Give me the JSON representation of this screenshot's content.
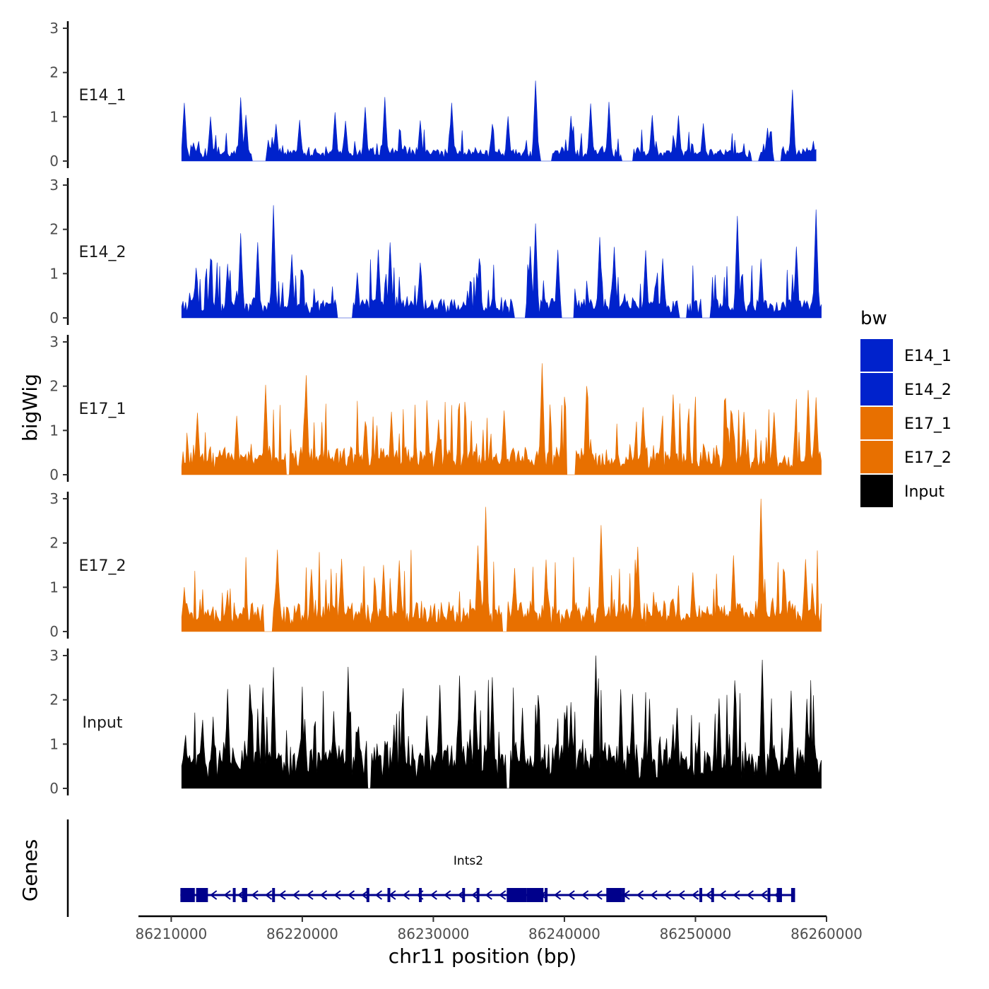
{
  "chart_data": {
    "type": "area",
    "chromosome": "chr11",
    "xlabel": "chr11 position (bp)",
    "ylabel": "bigWig",
    "gene_track_label": "Genes",
    "xlim": [
      86207500,
      86260000
    ],
    "data_xrange": [
      86210800,
      86259600
    ],
    "x_ticks": [
      86210000,
      86220000,
      86230000,
      86240000,
      86250000,
      86260000
    ],
    "x_tick_labels": [
      "86210000",
      "86220000",
      "86230000",
      "86240000",
      "86250000",
      "86260000"
    ],
    "ylim": [
      0,
      3
    ],
    "y_ticks": [
      0,
      1,
      2,
      3
    ],
    "y_tick_labels": [
      "0",
      "1",
      "2",
      "3"
    ],
    "legend": {
      "title": "bw",
      "position": "right",
      "entries": [
        {
          "name": "E14_1",
          "color": "#0022CC"
        },
        {
          "name": "E14_2",
          "color": "#0022CC"
        },
        {
          "name": "E17_1",
          "color": "#E87000"
        },
        {
          "name": "E17_2",
          "color": "#E87000"
        },
        {
          "name": "Input",
          "color": "#000000"
        }
      ]
    },
    "series": [
      {
        "name": "E14_1",
        "color": "#0022CC",
        "x_end": 86259200,
        "baseline": 0.15,
        "noise": 0.3,
        "seed": 11,
        "peaks": [
          [
            86211000,
            1.3
          ],
          [
            86213000,
            1.0
          ],
          [
            86215300,
            1.4
          ],
          [
            86215700,
            1.0
          ],
          [
            86218000,
            0.8
          ],
          [
            86219800,
            0.9
          ],
          [
            86222500,
            1.1
          ],
          [
            86223300,
            0.9
          ],
          [
            86224800,
            1.2
          ],
          [
            86226300,
            1.4
          ],
          [
            86229000,
            0.9
          ],
          [
            86231400,
            1.3
          ],
          [
            86234500,
            0.8
          ],
          [
            86235700,
            1.0
          ],
          [
            86237800,
            1.8
          ],
          [
            86240500,
            1.0
          ],
          [
            86242000,
            1.3
          ],
          [
            86243400,
            1.3
          ],
          [
            86246700,
            1.0
          ],
          [
            86248700,
            1.0
          ],
          [
            86250600,
            0.8
          ],
          [
            86255500,
            0.7
          ],
          [
            86257400,
            1.6
          ]
        ],
        "gaps": [
          [
            86216200,
            86217200
          ],
          [
            86238200,
            86239000
          ],
          [
            86244400,
            86245200
          ],
          [
            86254300,
            86254800
          ],
          [
            86256000,
            86256500
          ]
        ]
      },
      {
        "name": "E14_2",
        "color": "#0022CC",
        "x_end": 86259600,
        "baseline": 0.2,
        "noise": 0.5,
        "seed": 23,
        "peaks": [
          [
            86211900,
            1.1
          ],
          [
            86213000,
            1.3
          ],
          [
            86214300,
            1.2
          ],
          [
            86215300,
            1.9
          ],
          [
            86216600,
            1.7
          ],
          [
            86217800,
            2.5
          ],
          [
            86219200,
            1.4
          ],
          [
            86224200,
            1.0
          ],
          [
            86225800,
            1.5
          ],
          [
            86226700,
            1.7
          ],
          [
            86229000,
            1.2
          ],
          [
            86233500,
            1.3
          ],
          [
            86237400,
            1.6
          ],
          [
            86237800,
            2.1
          ],
          [
            86239500,
            1.5
          ],
          [
            86242700,
            1.8
          ],
          [
            86243800,
            1.6
          ],
          [
            86246200,
            1.5
          ],
          [
            86247500,
            1.3
          ],
          [
            86249000,
            1.4
          ],
          [
            86253200,
            2.3
          ],
          [
            86255000,
            1.3
          ],
          [
            86257700,
            1.6
          ],
          [
            86259200,
            2.4
          ]
        ],
        "gaps": [
          [
            86222700,
            86223800
          ],
          [
            86236200,
            86237000
          ],
          [
            86239800,
            86240700
          ],
          [
            86248800,
            86249300
          ],
          [
            86250500,
            86251100
          ]
        ]
      },
      {
        "name": "E17_1",
        "color": "#E87000",
        "x_end": 86259600,
        "baseline": 0.25,
        "noise": 0.7,
        "seed": 37,
        "peaks": [
          [
            86212000,
            1.4
          ],
          [
            86215000,
            1.3
          ],
          [
            86217200,
            2.0
          ],
          [
            86220300,
            2.2
          ],
          [
            86224800,
            1.2
          ],
          [
            86226800,
            1.4
          ],
          [
            86230400,
            1.2
          ],
          [
            86235400,
            1.4
          ],
          [
            86238300,
            2.5
          ],
          [
            86241700,
            2.0
          ],
          [
            86246000,
            1.5
          ],
          [
            86248300,
            1.8
          ],
          [
            86252300,
            1.7
          ],
          [
            86253700,
            1.4
          ],
          [
            86256000,
            1.4
          ],
          [
            86258600,
            1.9
          ],
          [
            86259200,
            1.7
          ]
        ],
        "gaps": [
          [
            86240200,
            86240800
          ],
          [
            86218800,
            86219000
          ]
        ]
      },
      {
        "name": "E17_2",
        "color": "#E87000",
        "x_end": 86259600,
        "baseline": 0.3,
        "noise": 0.7,
        "seed": 53,
        "peaks": [
          [
            86211000,
            1.0
          ],
          [
            86218100,
            1.8
          ],
          [
            86220700,
            1.4
          ],
          [
            86223000,
            1.6
          ],
          [
            86226200,
            1.5
          ],
          [
            86227400,
            1.6
          ],
          [
            86233400,
            1.9
          ],
          [
            86234000,
            2.8
          ],
          [
            86236200,
            1.4
          ],
          [
            86238600,
            1.6
          ],
          [
            86242800,
            2.4
          ],
          [
            86245600,
            1.9
          ],
          [
            86249800,
            1.3
          ],
          [
            86252900,
            1.7
          ],
          [
            86255000,
            3.0
          ],
          [
            86256800,
            1.3
          ],
          [
            86258400,
            1.6
          ]
        ],
        "gaps": [
          [
            86217100,
            86217700
          ],
          [
            86235300,
            86235600
          ]
        ]
      },
      {
        "name": "Input",
        "color": "#000000",
        "x_end": 86259600,
        "baseline": 0.55,
        "noise": 0.9,
        "seed": 71,
        "peaks": [
          [
            86212400,
            1.5
          ],
          [
            86213200,
            1.6
          ],
          [
            86214300,
            2.2
          ],
          [
            86216000,
            2.3
          ],
          [
            86217000,
            2.2
          ],
          [
            86217800,
            2.7
          ],
          [
            86220000,
            1.8
          ],
          [
            86222400,
            1.7
          ],
          [
            86223500,
            2.7
          ],
          [
            86227000,
            1.4
          ],
          [
            86229500,
            1.6
          ],
          [
            86230500,
            2.3
          ],
          [
            86232000,
            2.5
          ],
          [
            86233200,
            2.2
          ],
          [
            86234500,
            2.5
          ],
          [
            86236800,
            1.8
          ],
          [
            86238000,
            2.1
          ],
          [
            86240500,
            1.9
          ],
          [
            86242400,
            3.0
          ],
          [
            86244300,
            2.2
          ],
          [
            86245200,
            2.1
          ],
          [
            86246500,
            1.8
          ],
          [
            86248600,
            1.8
          ],
          [
            86251800,
            2.0
          ],
          [
            86253000,
            2.4
          ],
          [
            86255100,
            2.9
          ],
          [
            86257300,
            2.2
          ],
          [
            86258500,
            2.0
          ]
        ],
        "gaps": [
          [
            86225000,
            86225200
          ],
          [
            86235600,
            86235800
          ]
        ]
      }
    ],
    "genes": [
      {
        "name": "Ints2",
        "strand": "-",
        "start": 86210700,
        "end": 86257600,
        "color": "#00008B",
        "exons": [
          [
            86210700,
            86211800
          ],
          [
            86211900,
            86212800
          ],
          [
            86214700,
            86214900
          ],
          [
            86215400,
            86215800
          ],
          [
            86217700,
            86217900
          ],
          [
            86224900,
            86225100
          ],
          [
            86226500,
            86226700
          ],
          [
            86228900,
            86229000
          ],
          [
            86232200,
            86232400
          ],
          [
            86233300,
            86233500
          ],
          [
            86235600,
            86237100
          ],
          [
            86237100,
            86238400
          ],
          [
            86238500,
            86238700
          ],
          [
            86243200,
            86244400
          ],
          [
            86244400,
            86244600
          ],
          [
            86250300,
            86250500
          ],
          [
            86251200,
            86251400
          ],
          [
            86255500,
            86255700
          ],
          [
            86256200,
            86256600
          ],
          [
            86257300,
            86257600
          ]
        ]
      }
    ]
  }
}
